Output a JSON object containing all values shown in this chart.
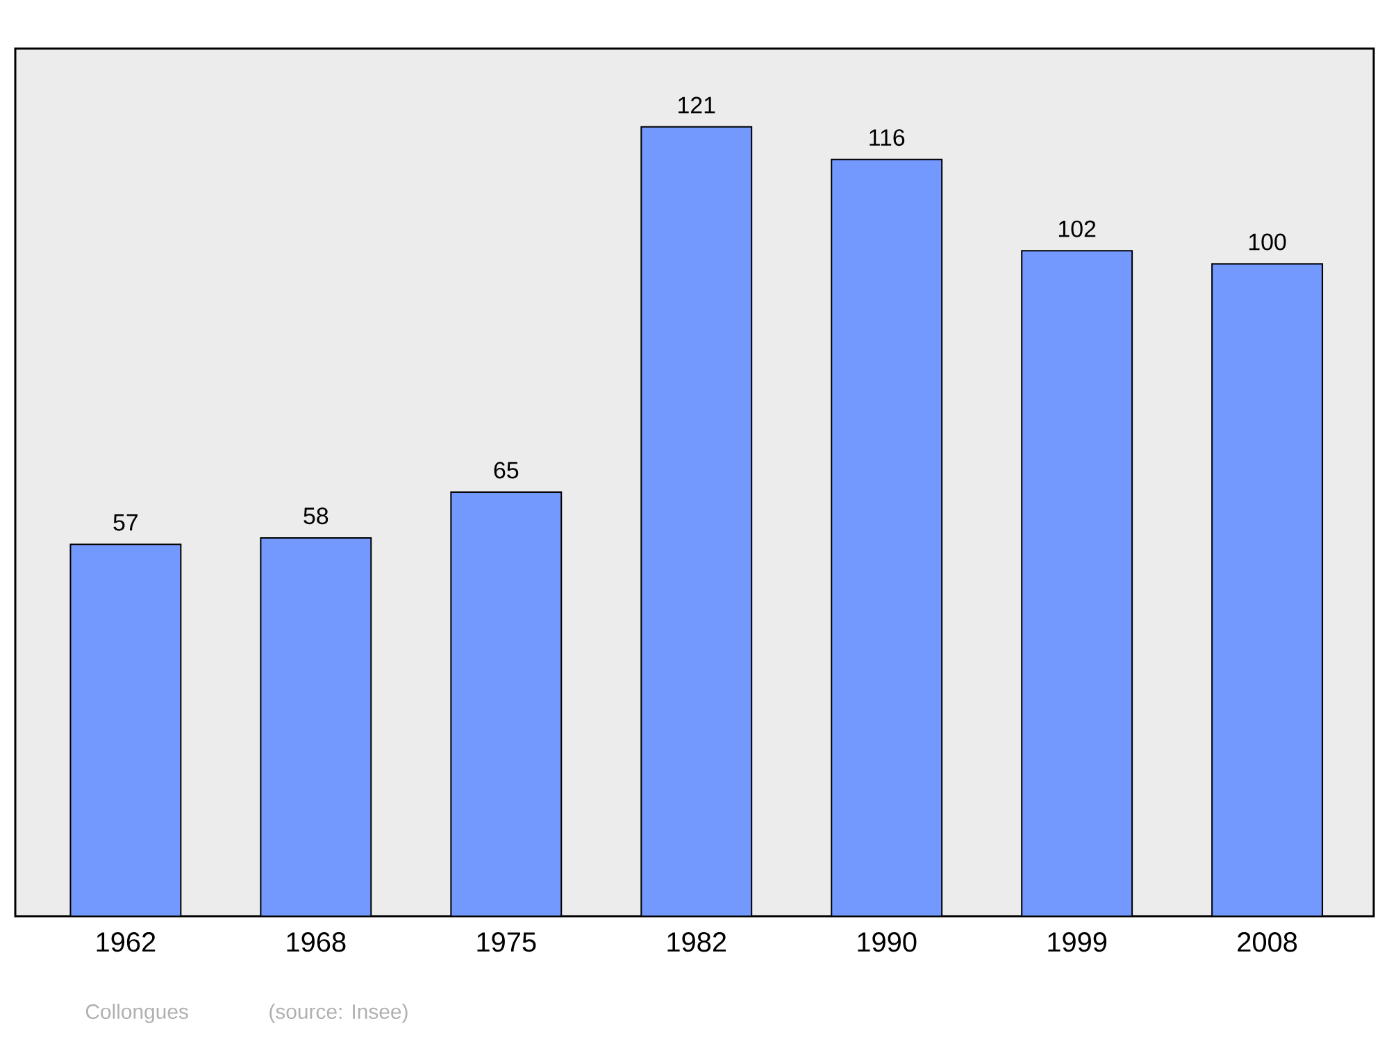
{
  "chart_data": {
    "type": "bar",
    "categories": [
      "1962",
      "1968",
      "1975",
      "1982",
      "1990",
      "1999",
      "2008"
    ],
    "values": [
      57,
      58,
      65,
      121,
      116,
      102,
      100
    ],
    "color": "#7399ff",
    "ylim": [
      0,
      133
    ],
    "data_labels": true,
    "tick_labels": "x",
    "annotations": [
      "Collongues",
      "(source: Insee)"
    ]
  }
}
